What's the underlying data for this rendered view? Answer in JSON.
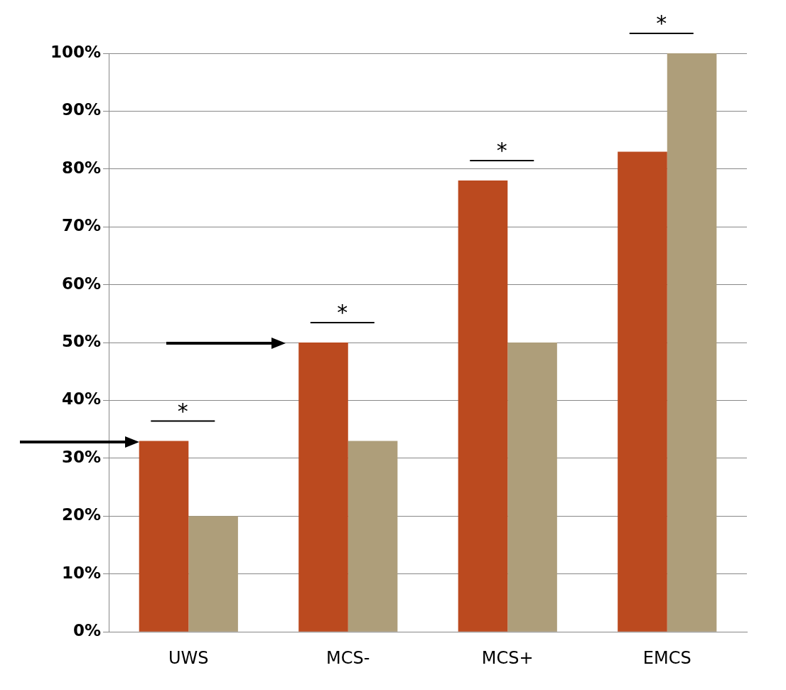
{
  "chart_data": {
    "type": "bar",
    "categories": [
      "UWS",
      "MCS-",
      "MCS+",
      "EMCS"
    ],
    "series": [
      {
        "color": "#bb4a1f",
        "values": [
          33,
          50,
          78,
          83
        ]
      },
      {
        "color": "#ae9e7a",
        "values": [
          20,
          33,
          50,
          100
        ]
      }
    ],
    "ylim": [
      0,
      100
    ],
    "yticks": [
      {
        "value": 0,
        "label": "0%"
      },
      {
        "value": 10,
        "label": "10%"
      },
      {
        "value": 20,
        "label": "20%"
      },
      {
        "value": 30,
        "label": "30%"
      },
      {
        "value": 40,
        "label": "40%"
      },
      {
        "value": 50,
        "label": "50%"
      },
      {
        "value": 60,
        "label": "60%"
      },
      {
        "value": 70,
        "label": "70%"
      },
      {
        "value": 80,
        "label": "80%"
      },
      {
        "value": 90,
        "label": "90%"
      },
      {
        "value": 100,
        "label": "100%"
      }
    ],
    "grid": "y",
    "legend": false,
    "annotations": [
      "*",
      "*",
      "*",
      "*"
    ]
  }
}
